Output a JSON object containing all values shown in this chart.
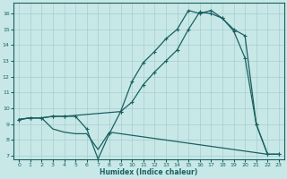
{
  "xlabel": "Humidex (Indice chaleur)",
  "xlim": [
    -0.5,
    23.5
  ],
  "ylim": [
    6.8,
    16.7
  ],
  "yticks": [
    7,
    8,
    9,
    10,
    11,
    12,
    13,
    14,
    15,
    16
  ],
  "xticks": [
    0,
    1,
    2,
    3,
    4,
    5,
    6,
    7,
    8,
    9,
    10,
    11,
    12,
    13,
    14,
    15,
    16,
    17,
    18,
    19,
    20,
    21,
    22,
    23
  ],
  "bg_color": "#c8e8e8",
  "grid_color": "#a8cccc",
  "line_color": "#1a6060",
  "line1_x": [
    0,
    1,
    2,
    3,
    4,
    5,
    6,
    7,
    8,
    9,
    10,
    11,
    12,
    13,
    14,
    15,
    16,
    17,
    18,
    19,
    20,
    21,
    22,
    23
  ],
  "line1_y": [
    9.3,
    9.4,
    9.4,
    9.5,
    9.5,
    9.5,
    8.7,
    6.8,
    8.4,
    9.8,
    11.7,
    12.9,
    13.6,
    14.4,
    15.0,
    16.2,
    16.0,
    16.2,
    15.7,
    14.9,
    13.2,
    9.0,
    7.1,
    7.1
  ],
  "line2_x": [
    0,
    1,
    2,
    3,
    4,
    9,
    10,
    11,
    12,
    13,
    14,
    15,
    16,
    17,
    18,
    19,
    20,
    21,
    22,
    23
  ],
  "line2_y": [
    9.3,
    9.4,
    9.4,
    9.5,
    9.5,
    9.8,
    10.4,
    11.5,
    12.3,
    13.0,
    13.7,
    15.0,
    16.1,
    16.0,
    15.7,
    15.0,
    14.6,
    9.0,
    7.1,
    7.1
  ],
  "line3_x": [
    0,
    1,
    2,
    3,
    4,
    5,
    6,
    7,
    8,
    9,
    10,
    11,
    12,
    13,
    14,
    15,
    16,
    17,
    18,
    19,
    20,
    21,
    22,
    23
  ],
  "line3_y": [
    9.3,
    9.4,
    9.4,
    8.7,
    8.5,
    8.4,
    8.4,
    7.4,
    8.5,
    8.4,
    8.3,
    8.2,
    8.1,
    8.0,
    7.9,
    7.8,
    7.7,
    7.6,
    7.5,
    7.4,
    7.3,
    7.2,
    7.1,
    7.1
  ]
}
